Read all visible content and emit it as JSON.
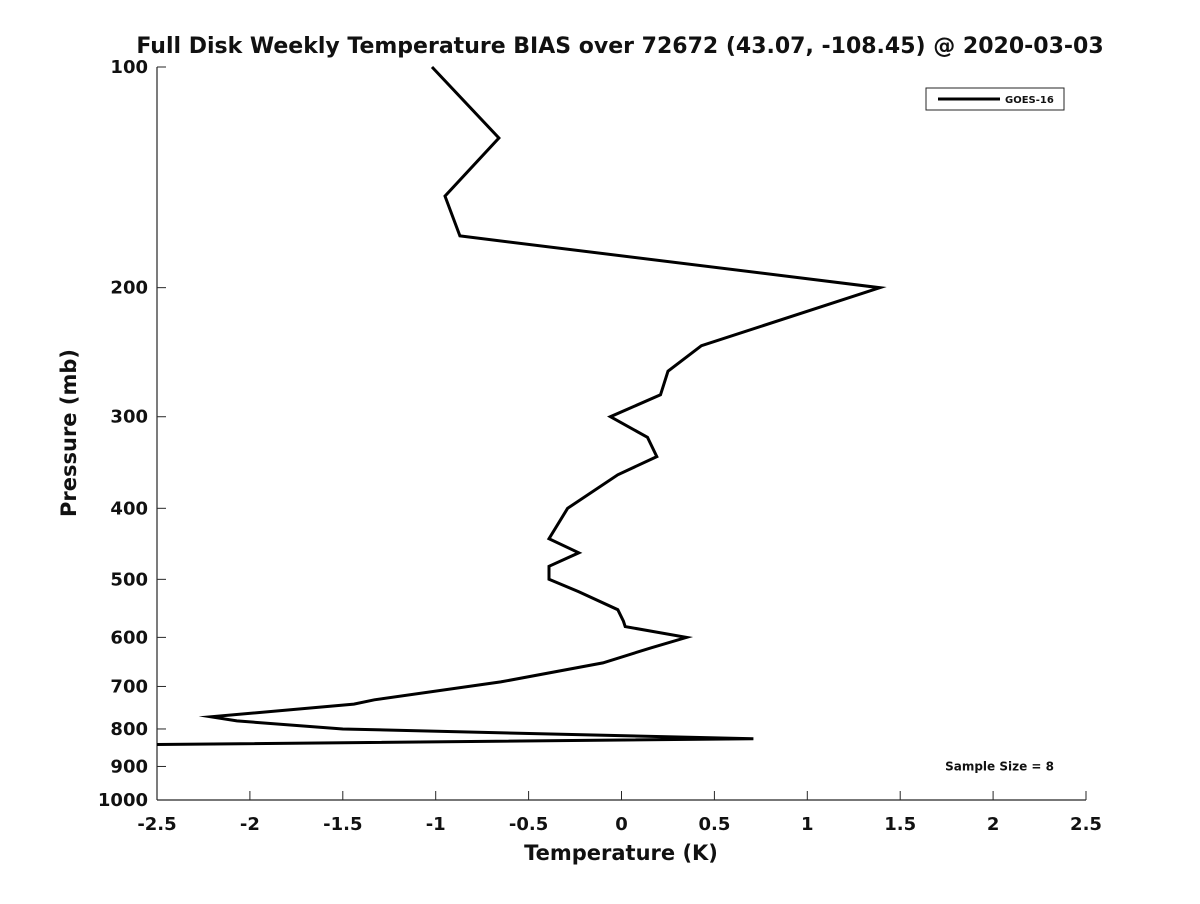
{
  "chart_data": {
    "type": "line",
    "title": "Full Disk Weekly Temperature BIAS over 72672 (43.07, -108.45) @ 2020-03-03",
    "xlabel": "Temperature (K)",
    "ylabel": "Pressure (mb)",
    "xlim": [
      -2.5,
      2.5
    ],
    "ylim": [
      1000,
      100
    ],
    "yscale": "log",
    "y_reversed": true,
    "x_ticks": [
      "-2.5",
      "-2",
      "-1.5",
      "-1",
      "-0.5",
      "0",
      "0.5",
      "1",
      "1.5",
      "2",
      "2.5"
    ],
    "x_tick_values": [
      -2.5,
      -2,
      -1.5,
      -1,
      -0.5,
      0,
      0.5,
      1,
      1.5,
      2,
      2.5
    ],
    "y_ticks": [
      "100",
      "200",
      "300",
      "400",
      "500",
      "600",
      "700",
      "800",
      "900",
      "1000"
    ],
    "y_tick_values": [
      100,
      200,
      300,
      400,
      500,
      600,
      700,
      800,
      900,
      1000
    ],
    "grid": false,
    "legend_position": "top-right",
    "series": [
      {
        "name": "GOES-16",
        "color": "#000000",
        "points": [
          {
            "x": -1.02,
            "y": 100
          },
          {
            "x": -0.66,
            "y": 125
          },
          {
            "x": -0.95,
            "y": 150
          },
          {
            "x": -0.87,
            "y": 170
          },
          {
            "x": 1.39,
            "y": 200
          },
          {
            "x": 0.43,
            "y": 240
          },
          {
            "x": 0.25,
            "y": 260
          },
          {
            "x": 0.21,
            "y": 280
          },
          {
            "x": -0.06,
            "y": 300
          },
          {
            "x": 0.14,
            "y": 320
          },
          {
            "x": 0.19,
            "y": 340
          },
          {
            "x": -0.02,
            "y": 360
          },
          {
            "x": -0.29,
            "y": 400
          },
          {
            "x": -0.39,
            "y": 440
          },
          {
            "x": -0.23,
            "y": 460
          },
          {
            "x": -0.39,
            "y": 480
          },
          {
            "x": -0.39,
            "y": 500
          },
          {
            "x": -0.23,
            "y": 520
          },
          {
            "x": -0.02,
            "y": 550
          },
          {
            "x": 0.01,
            "y": 570
          },
          {
            "x": 0.02,
            "y": 580
          },
          {
            "x": 0.35,
            "y": 600
          },
          {
            "x": 0.16,
            "y": 620
          },
          {
            "x": -0.1,
            "y": 650
          },
          {
            "x": -0.65,
            "y": 690
          },
          {
            "x": -1.33,
            "y": 730
          },
          {
            "x": -1.44,
            "y": 740
          },
          {
            "x": -2.21,
            "y": 770
          },
          {
            "x": -2.07,
            "y": 780
          },
          {
            "x": -1.5,
            "y": 800
          },
          {
            "x": 0.71,
            "y": 825
          },
          {
            "x": -2.5,
            "y": 840
          }
        ]
      }
    ],
    "annotations": [
      {
        "text": "Sample Size = 8",
        "x": 2.0,
        "y": 900
      }
    ]
  }
}
